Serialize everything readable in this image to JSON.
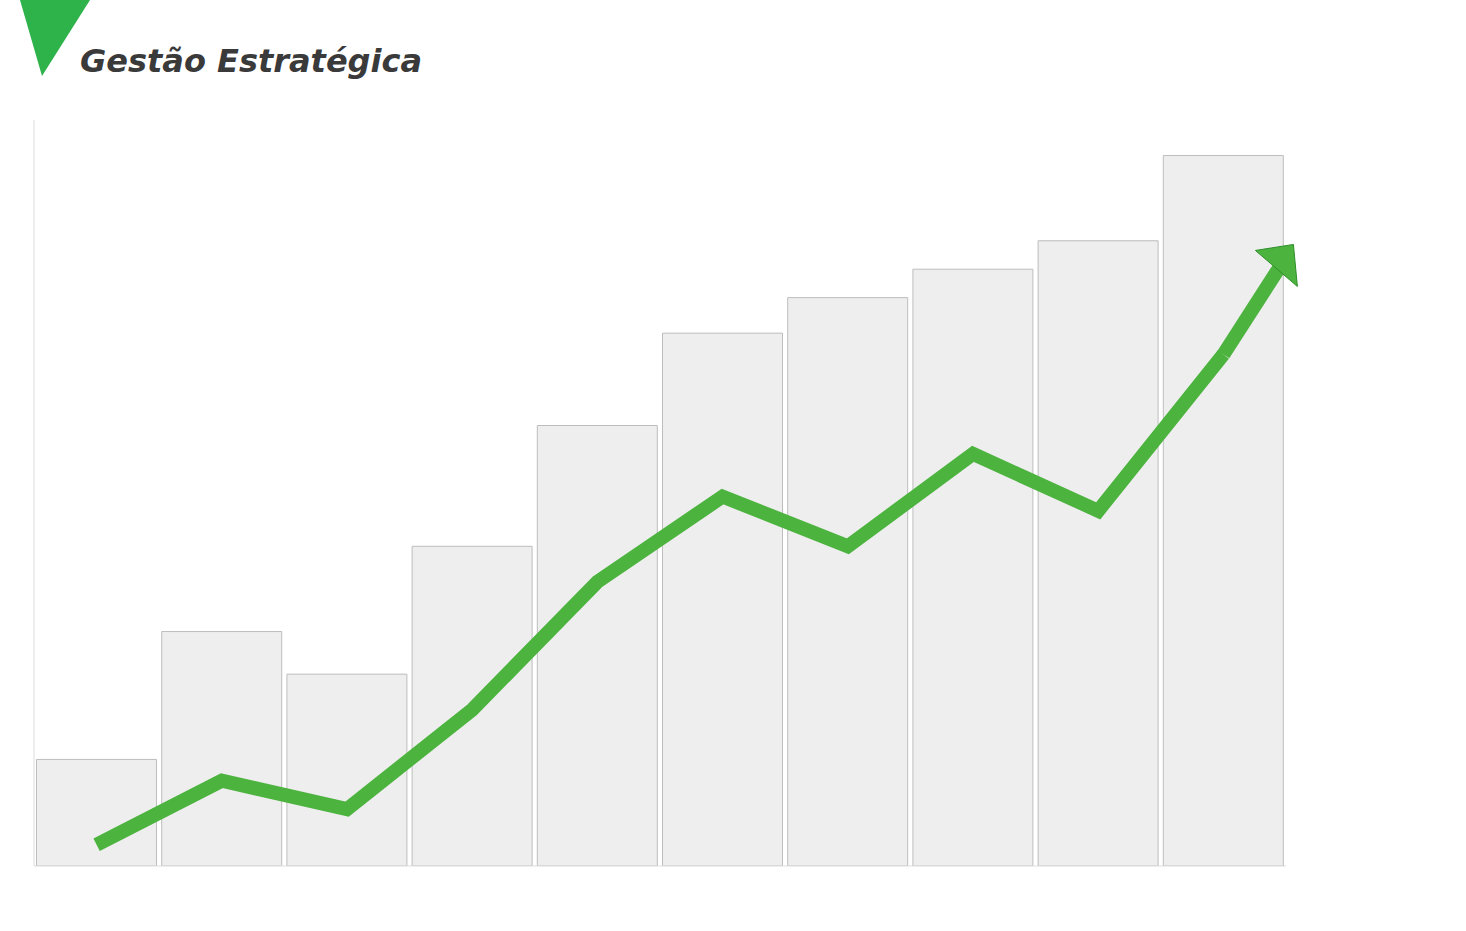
{
  "chart_data": {
    "type": "bar",
    "title": "Gestão Estratégica",
    "categories": [
      null,
      null,
      null,
      null,
      null,
      null,
      null,
      null,
      null,
      null
    ],
    "ylim": [
      0,
      105
    ],
    "tick_labels": false,
    "series": [
      {
        "type": "bar",
        "color": "#eeeeee",
        "values": [
          15,
          33,
          27,
          45,
          62,
          75,
          80,
          84,
          88,
          100
        ]
      },
      {
        "type": "line",
        "color": "#4cb33e",
        "marker": "arrow",
        "values": [
          3,
          12,
          8,
          22,
          40,
          52,
          45,
          58,
          50,
          72
        ]
      }
    ]
  }
}
